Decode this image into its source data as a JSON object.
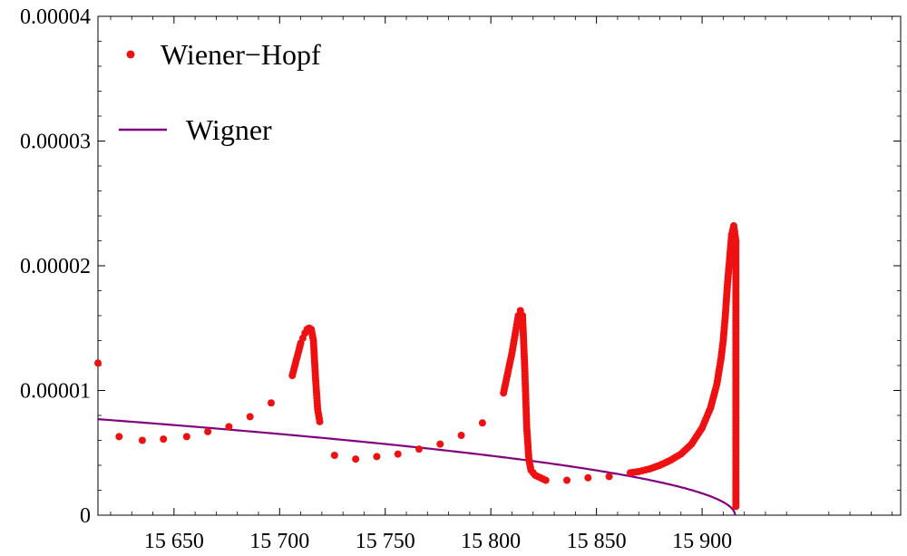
{
  "chart_data": {
    "type": "scatter",
    "title": "",
    "xlabel": "",
    "ylabel": "",
    "xlim": [
      15614,
      15994
    ],
    "ylim": [
      0,
      4e-05
    ],
    "x_ticks": [
      {
        "value": 15650,
        "label": "15 650"
      },
      {
        "value": 15700,
        "label": "15 700"
      },
      {
        "value": 15750,
        "label": "15 750"
      },
      {
        "value": 15800,
        "label": "15 800"
      },
      {
        "value": 15850,
        "label": "15 850"
      },
      {
        "value": 15900,
        "label": "15 900"
      }
    ],
    "y_ticks": [
      {
        "value": 0,
        "label": "0"
      },
      {
        "value": 1e-05,
        "label": "0.00001"
      },
      {
        "value": 2e-05,
        "label": "0.00002"
      },
      {
        "value": 3e-05,
        "label": "0.00003"
      },
      {
        "value": 4e-05,
        "label": "0.00004"
      }
    ],
    "legend_position": "top-left",
    "series": [
      {
        "name": "Wiener−Hopf",
        "kind": "points",
        "color": "#ee1111",
        "points": [
          [
            15614,
            1.22e-05
          ],
          [
            15624,
            6.3e-06
          ],
          [
            15635,
            6e-06
          ],
          [
            15645,
            6.1e-06
          ],
          [
            15656,
            6.3e-06
          ],
          [
            15666,
            6.7e-06
          ],
          [
            15676,
            7.1e-06
          ],
          [
            15686,
            7.9e-06
          ],
          [
            15696,
            9e-06
          ],
          [
            15706,
            1.12e-05
          ],
          [
            15710,
            1.38e-05
          ],
          [
            15711,
            1.42e-05
          ],
          [
            15712,
            1.46e-05
          ],
          [
            15713,
            1.49e-05
          ],
          [
            15714,
            1.5e-05
          ],
          [
            15715,
            1.49e-05
          ],
          [
            15716,
            1.4e-05
          ],
          [
            15717,
            1.1e-05
          ],
          [
            15718,
            8.5e-06
          ],
          [
            15719,
            7.5e-06
          ],
          [
            15726,
            4.8e-06
          ],
          [
            15736,
            4.5e-06
          ],
          [
            15746,
            4.7e-06
          ],
          [
            15756,
            4.9e-06
          ],
          [
            15766,
            5.3e-06
          ],
          [
            15776,
            5.7e-06
          ],
          [
            15786,
            6.4e-06
          ],
          [
            15796,
            7.4e-06
          ],
          [
            15806,
            9.8e-06
          ],
          [
            15810,
            1.3e-05
          ],
          [
            15811,
            1.4e-05
          ],
          [
            15812,
            1.5e-05
          ],
          [
            15813,
            1.6e-05
          ],
          [
            15814,
            1.64e-05
          ],
          [
            15815,
            1.6e-05
          ],
          [
            15816,
            1.2e-05
          ],
          [
            15817,
            7e-06
          ],
          [
            15818,
            4.5e-06
          ],
          [
            15819,
            3.6e-06
          ],
          [
            15821,
            3.2e-06
          ],
          [
            15826,
            2.8e-06
          ],
          [
            15836,
            2.8e-06
          ],
          [
            15846,
            3e-06
          ],
          [
            15856,
            3.1e-06
          ],
          [
            15866,
            3.4e-06
          ],
          [
            15870,
            3.5e-06
          ],
          [
            15875,
            3.7e-06
          ],
          [
            15880,
            4e-06
          ],
          [
            15885,
            4.4e-06
          ],
          [
            15890,
            4.9e-06
          ],
          [
            15895,
            5.7e-06
          ],
          [
            15900,
            7e-06
          ],
          [
            15904,
            8.6e-06
          ],
          [
            15907,
            1.05e-05
          ],
          [
            15909,
            1.26e-05
          ],
          [
            15910,
            1.4e-05
          ],
          [
            15911,
            1.6e-05
          ],
          [
            15912,
            1.85e-05
          ],
          [
            15913,
            2.05e-05
          ],
          [
            15914,
            2.25e-05
          ],
          [
            15915,
            2.32e-05
          ],
          [
            15916,
            2.2e-05
          ],
          [
            15916,
            1.85e-05
          ],
          [
            15916,
            1.45e-05
          ],
          [
            15916,
            1e-05
          ],
          [
            15916,
            5.3e-06
          ],
          [
            15916,
            7e-07
          ]
        ]
      },
      {
        "name": "Wigner",
        "kind": "line",
        "color": "#800080",
        "x_end": 15915.6,
        "y_start": 7.7e-06,
        "x_start": 15614
      }
    ]
  }
}
